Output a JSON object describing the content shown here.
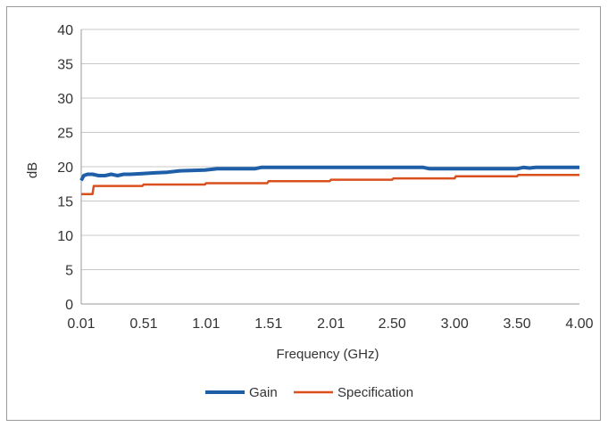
{
  "chart_data": {
    "type": "line",
    "title": "",
    "xlabel": "Frequency (GHz)",
    "ylabel": "dB",
    "xlim": [
      0.01,
      4.0
    ],
    "ylim": [
      0,
      40
    ],
    "x_ticks": [
      "0.01",
      "0.51",
      "1.01",
      "1.51",
      "2.01",
      "2.50",
      "3.00",
      "3.50",
      "4.00"
    ],
    "x_tick_values": [
      0.01,
      0.51,
      1.01,
      1.51,
      2.01,
      2.5,
      3.0,
      3.5,
      4.0
    ],
    "y_ticks": [
      0,
      5,
      10,
      15,
      20,
      25,
      30,
      35,
      40
    ],
    "grid": "horizontal",
    "legend_position": "bottom",
    "series": [
      {
        "name": "Gain",
        "color": "#1f5fa8",
        "x": [
          0.01,
          0.03,
          0.06,
          0.1,
          0.15,
          0.2,
          0.25,
          0.3,
          0.35,
          0.4,
          0.5,
          0.6,
          0.7,
          0.8,
          1.0,
          1.1,
          1.2,
          1.4,
          1.45,
          1.6,
          2.0,
          2.5,
          2.75,
          2.8,
          3.0,
          3.5,
          3.55,
          3.6,
          3.65,
          4.0
        ],
        "y": [
          18.0,
          18.7,
          18.9,
          18.9,
          18.7,
          18.7,
          18.9,
          18.7,
          18.9,
          18.9,
          19.0,
          19.1,
          19.2,
          19.4,
          19.5,
          19.7,
          19.7,
          19.7,
          19.9,
          19.9,
          19.9,
          19.9,
          19.9,
          19.7,
          19.7,
          19.7,
          19.9,
          19.8,
          19.9,
          19.9
        ]
      },
      {
        "name": "Specification",
        "color": "#d9501e",
        "x": [
          0.01,
          0.1,
          0.11,
          0.5,
          0.51,
          1.0,
          1.01,
          1.5,
          1.51,
          2.0,
          2.01,
          2.5,
          2.51,
          3.0,
          3.01,
          3.5,
          3.51,
          4.0
        ],
        "y": [
          16.0,
          16.0,
          17.2,
          17.2,
          17.4,
          17.4,
          17.6,
          17.6,
          17.9,
          17.9,
          18.1,
          18.1,
          18.3,
          18.3,
          18.6,
          18.6,
          18.8,
          18.8
        ]
      }
    ]
  }
}
